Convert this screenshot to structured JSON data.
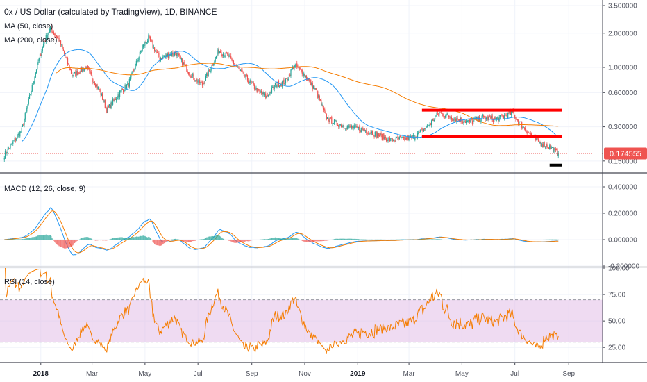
{
  "chart_title": "0x / US Dollar (calculated by TradingView), 1D, BINANCE",
  "colors": {
    "up": "#26a69a",
    "down": "#ef5350",
    "ma50": "#2196f3",
    "ma200": "#f57c00",
    "macd": "#2196f3",
    "signal": "#f57c00",
    "rsi": "#f57c00",
    "rsi_band": "#e1bee7",
    "annotation": "#ff0000",
    "price_tag": "#ef5350"
  },
  "chart_data": [
    {
      "type": "candlestick",
      "title": "0x / US Dollar (calculated by TradingView), 1D, BINANCE",
      "scale": "log",
      "ylim": [
        0.13,
        3.6
      ],
      "y_ticks": [
        "3.500000",
        "2.000000",
        "1.000000",
        "0.600000",
        "0.300000",
        "0.150000"
      ],
      "y_tick_values": [
        3.5,
        2.0,
        1.0,
        0.6,
        0.3,
        0.15
      ],
      "indicators": [
        "MA (50, close)",
        "MA (200, close)"
      ],
      "last_price_label": "0.174555",
      "last_price": 0.174555,
      "close_series_anchors": [
        [
          "2017-11-20",
          0.17
        ],
        [
          "2017-12-10",
          0.28
        ],
        [
          "2017-12-28",
          1.05
        ],
        [
          "2018-01-05",
          1.7
        ],
        [
          "2018-01-12",
          2.2
        ],
        [
          "2018-01-22",
          1.75
        ],
        [
          "2018-02-06",
          0.85
        ],
        [
          "2018-02-22",
          1.0
        ],
        [
          "2018-03-10",
          0.62
        ],
        [
          "2018-03-18",
          0.42
        ],
        [
          "2018-04-02",
          0.6
        ],
        [
          "2018-04-12",
          0.72
        ],
        [
          "2018-04-28",
          1.5
        ],
        [
          "2018-05-05",
          1.8
        ],
        [
          "2018-05-18",
          1.2
        ],
        [
          "2018-06-05",
          1.35
        ],
        [
          "2018-06-25",
          0.82
        ],
        [
          "2018-07-06",
          0.7
        ],
        [
          "2018-07-25",
          1.4
        ],
        [
          "2018-08-05",
          1.25
        ],
        [
          "2018-08-20",
          0.9
        ],
        [
          "2018-09-08",
          0.62
        ],
        [
          "2018-09-18",
          0.55
        ],
        [
          "2018-09-28",
          0.7
        ],
        [
          "2018-10-10",
          0.75
        ],
        [
          "2018-10-20",
          1.05
        ],
        [
          "2018-10-30",
          0.9
        ],
        [
          "2018-11-14",
          0.62
        ],
        [
          "2018-11-26",
          0.36
        ],
        [
          "2018-12-08",
          0.32
        ],
        [
          "2018-12-20",
          0.3
        ],
        [
          "2019-01-10",
          0.28
        ],
        [
          "2019-02-08",
          0.23
        ],
        [
          "2019-03-05",
          0.24
        ],
        [
          "2019-03-22",
          0.3
        ],
        [
          "2019-04-05",
          0.4
        ],
        [
          "2019-04-20",
          0.36
        ],
        [
          "2019-05-10",
          0.33
        ],
        [
          "2019-05-25",
          0.36
        ],
        [
          "2019-06-10",
          0.35
        ],
        [
          "2019-06-28",
          0.4
        ],
        [
          "2019-07-10",
          0.3
        ],
        [
          "2019-07-28",
          0.22
        ],
        [
          "2019-08-10",
          0.2
        ],
        [
          "2019-08-20",
          0.1746
        ]
      ],
      "annotations": [
        {
          "type": "horizontal-line",
          "color": "#ff0000",
          "from": "2019-03-16",
          "to": "2019-08-24",
          "price": 0.42
        },
        {
          "type": "horizontal-line",
          "color": "#ff0000",
          "from": "2019-03-16",
          "to": "2019-08-24",
          "price": 0.245
        },
        {
          "type": "horizontal-line",
          "color": "#000000",
          "from": "2019-08-10",
          "to": "2019-08-24",
          "price": 0.138
        }
      ]
    },
    {
      "type": "line",
      "title": "MACD (12, 26, close, 9)",
      "ylim": [
        -0.2,
        0.5
      ],
      "y_ticks": [
        "0.400000",
        "0.200000",
        "0.000000",
        "-0.200000"
      ],
      "y_tick_values": [
        0.4,
        0.2,
        0.0,
        -0.2
      ],
      "series": [
        {
          "name": "MACD"
        },
        {
          "name": "Signal"
        },
        {
          "name": "Histogram"
        }
      ]
    },
    {
      "type": "line",
      "title": "RSI (14, close)",
      "ylim": [
        12,
        100
      ],
      "y_ticks": [
        "100.00",
        "75.00",
        "50.00",
        "25.00"
      ],
      "y_tick_values": [
        100,
        75,
        50,
        25
      ],
      "band": [
        30,
        70
      ],
      "series": [
        {
          "name": "RSI"
        }
      ]
    }
  ],
  "x_axis": {
    "ticks": [
      {
        "label": "2018",
        "date": "2018-01-01",
        "bold": true
      },
      {
        "label": "Mar",
        "date": "2018-03-01"
      },
      {
        "label": "May",
        "date": "2018-05-01"
      },
      {
        "label": "Jul",
        "date": "2018-07-01"
      },
      {
        "label": "Sep",
        "date": "2018-09-01"
      },
      {
        "label": "Nov",
        "date": "2018-11-01"
      },
      {
        "label": "2019",
        "date": "2019-01-01",
        "bold": true
      },
      {
        "label": "Mar",
        "date": "2019-03-01"
      },
      {
        "label": "May",
        "date": "2019-05-01"
      },
      {
        "label": "Jul",
        "date": "2019-07-01"
      },
      {
        "label": "Sep",
        "date": "2019-09-01"
      }
    ],
    "start": "2017-11-15",
    "end": "2019-10-10"
  }
}
